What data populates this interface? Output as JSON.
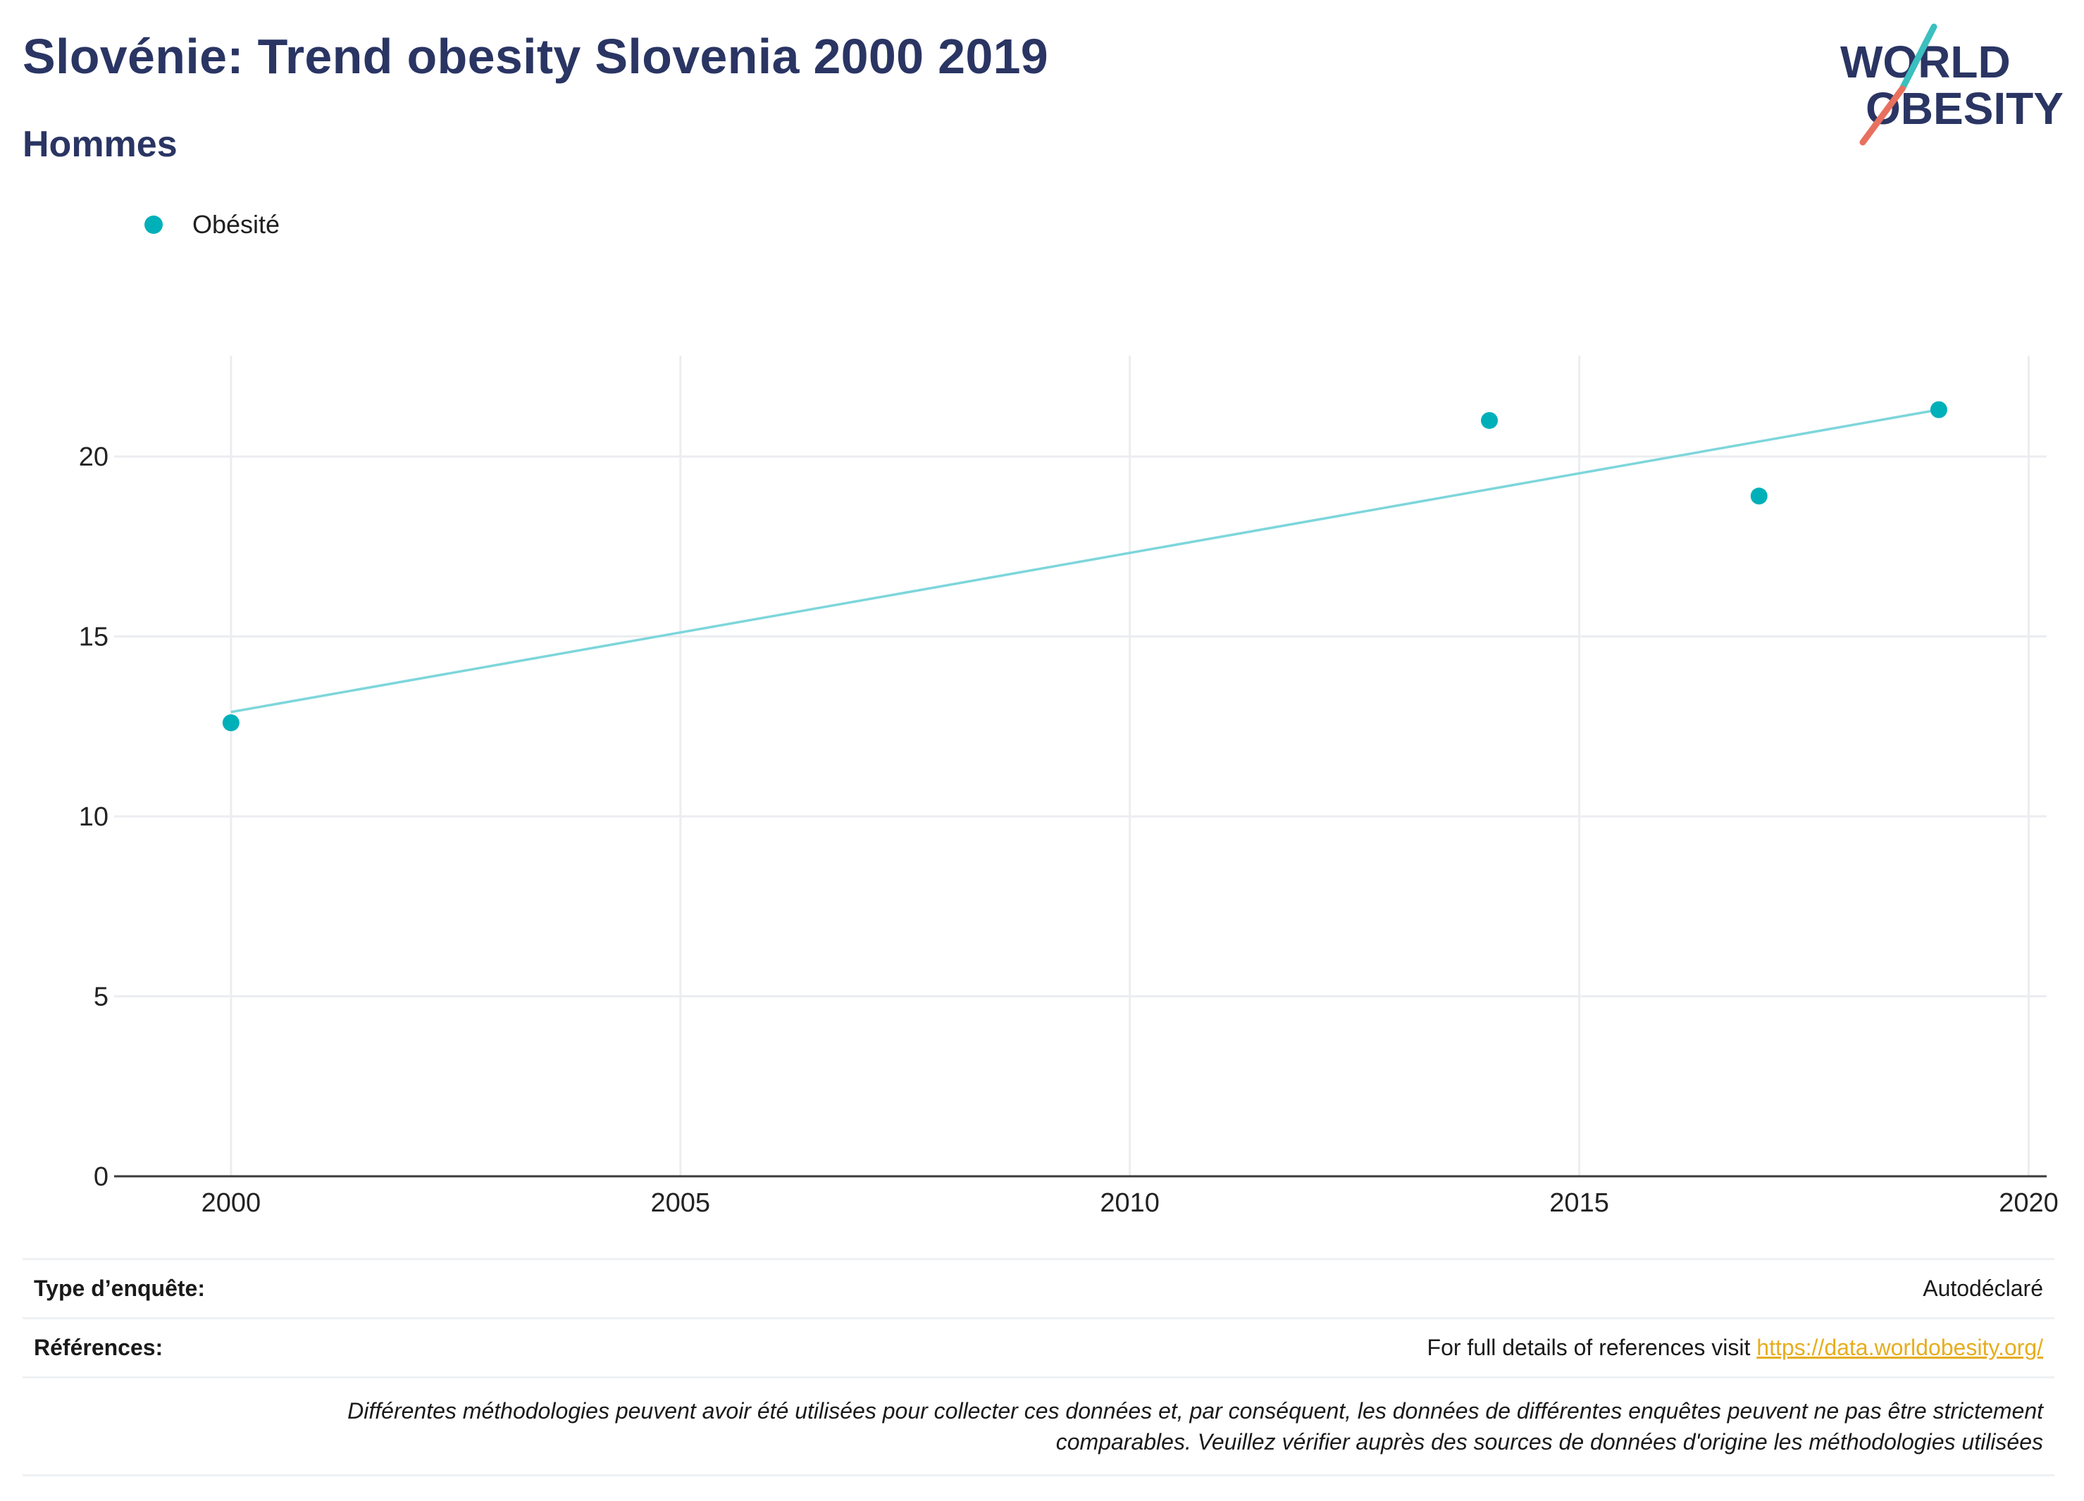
{
  "title": "Slovénie: Trend obesity Slovenia 2000 2019",
  "subtitle": "Hommes",
  "logo": {
    "line1": "WORLD",
    "line2": "OBESITY",
    "colors": {
      "navy": "#2a3563",
      "teal": "#3bbfbf",
      "coral": "#e8705e"
    }
  },
  "legend": {
    "label": "Obésité",
    "color": "#00b0b9"
  },
  "chart_data": {
    "type": "scatter",
    "series": [
      {
        "name": "Obésité",
        "x": [
          2000,
          2014,
          2017,
          2019
        ],
        "y": [
          12.6,
          21.0,
          18.9,
          21.3
        ],
        "color": "#00b0b9"
      }
    ],
    "trendline": {
      "x": [
        2000,
        2019
      ],
      "y": [
        12.9,
        21.3
      ],
      "color": "#7dd6db"
    },
    "xlim": [
      1998.7,
      2020.2
    ],
    "ylim": [
      0,
      22.8
    ],
    "xticks": [
      2000,
      2005,
      2010,
      2015,
      2020
    ],
    "yticks": [
      0,
      5,
      10,
      15,
      20
    ],
    "grid": true,
    "legend_position": "top-left"
  },
  "footer": {
    "survey_label": "Type d’enquête:",
    "survey_value": "Autodéclaré",
    "references_label": "Références:",
    "references_text": "For full details of references visit ",
    "references_link": "https://data.worldobesity.org/",
    "note_line1": "Différentes méthodologies peuvent avoir été utilisées pour collecter ces données et, par conséquent, les données de différentes enquêtes peuvent ne pas être strictement",
    "note_line2": "comparables. Veuillez vérifier auprès des sources de données d'origine les méthodologies utilisées"
  }
}
